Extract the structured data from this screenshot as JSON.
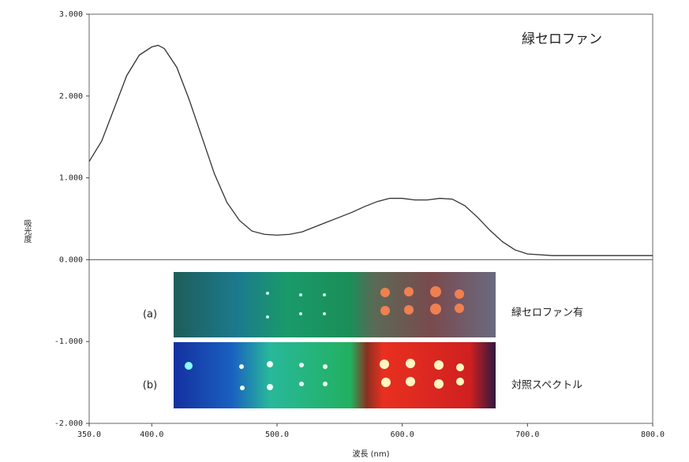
{
  "chart_data": {
    "type": "line",
    "annotation": "緑セロファン",
    "y_label": "吸光度",
    "x_label": "波長 (nm)",
    "x": [
      350,
      360,
      370,
      380,
      390,
      400,
      405,
      410,
      420,
      430,
      440,
      450,
      460,
      470,
      480,
      490,
      500,
      510,
      520,
      530,
      540,
      550,
      560,
      570,
      580,
      590,
      600,
      610,
      620,
      630,
      640,
      650,
      660,
      670,
      680,
      690,
      700,
      720,
      750,
      800
    ],
    "series": [
      {
        "color": "#333333",
        "values": [
          1.2,
          1.45,
          1.85,
          2.25,
          2.5,
          2.6,
          2.62,
          2.58,
          2.35,
          1.95,
          1.5,
          1.05,
          0.7,
          0.48,
          0.35,
          0.31,
          0.3,
          0.31,
          0.34,
          0.4,
          0.46,
          0.52,
          0.58,
          0.65,
          0.71,
          0.75,
          0.75,
          0.73,
          0.73,
          0.75,
          0.74,
          0.66,
          0.52,
          0.36,
          0.22,
          0.12,
          0.07,
          0.05,
          0.05,
          0.05
        ]
      }
    ],
    "xlim": [
      350,
      800
    ],
    "ylim": [
      -2,
      3
    ],
    "xticks": [
      {
        "value": 350,
        "label": "350.0"
      },
      {
        "value": 400,
        "label": "400.0"
      },
      {
        "value": 500,
        "label": "500.0"
      },
      {
        "value": 600,
        "label": "600.0"
      },
      {
        "value": 700,
        "label": "700.0"
      },
      {
        "value": 800,
        "label": "800.0"
      }
    ],
    "yticks": [
      {
        "value": 3,
        "label": "3.000"
      },
      {
        "value": 2,
        "label": "2.000"
      },
      {
        "value": 1,
        "label": "1.000"
      },
      {
        "value": 0,
        "label": "0.000"
      },
      {
        "value": -1,
        "label": "-1.000"
      },
      {
        "value": -2,
        "label": "-2.000"
      }
    ],
    "insets": [
      {
        "label": "(a)",
        "caption": "緑セロファン有"
      },
      {
        "label": "(b)",
        "caption": "対照スペクトル"
      }
    ]
  }
}
